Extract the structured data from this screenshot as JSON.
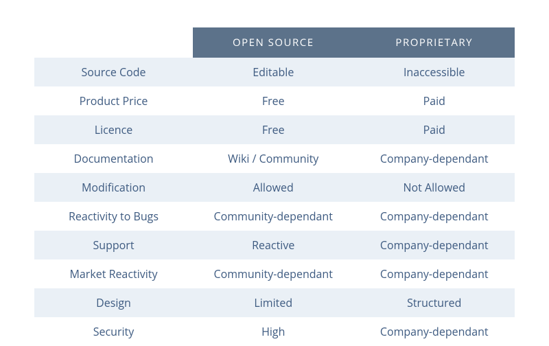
{
  "table": {
    "type": "table",
    "columns": [
      "",
      "OPEN SOURCE",
      "PROPRIETARY"
    ],
    "rows": [
      [
        "Source Code",
        "Editable",
        "Inaccessible"
      ],
      [
        "Product Price",
        "Free",
        "Paid"
      ],
      [
        "Licence",
        "Free",
        "Paid"
      ],
      [
        "Documentation",
        "Wiki / Community",
        "Company-dependant"
      ],
      [
        "Modification",
        "Allowed",
        "Not Allowed"
      ],
      [
        "Reactivity to Bugs",
        "Community-dependant",
        "Company-dependant"
      ],
      [
        "Support",
        "Reactive",
        "Company-dependant"
      ],
      [
        "Market Reactivity",
        "Community-dependant",
        "Company-dependant"
      ],
      [
        "Design",
        "Limited",
        "Structured"
      ],
      [
        "Security",
        "High",
        "Company-dependant"
      ]
    ],
    "header_bg_color": "#5c728a",
    "header_text_color": "#ffffff",
    "row_odd_bg": "#eaf0f6",
    "row_even_bg": "#ffffff",
    "text_color": "#3d5a80",
    "font_size_header": 15,
    "font_size_cell": 16,
    "column_widths": [
      "33%",
      "33.5%",
      "33.5%"
    ],
    "cell_padding": "10px 8px",
    "header_padding": "12px 8px"
  }
}
